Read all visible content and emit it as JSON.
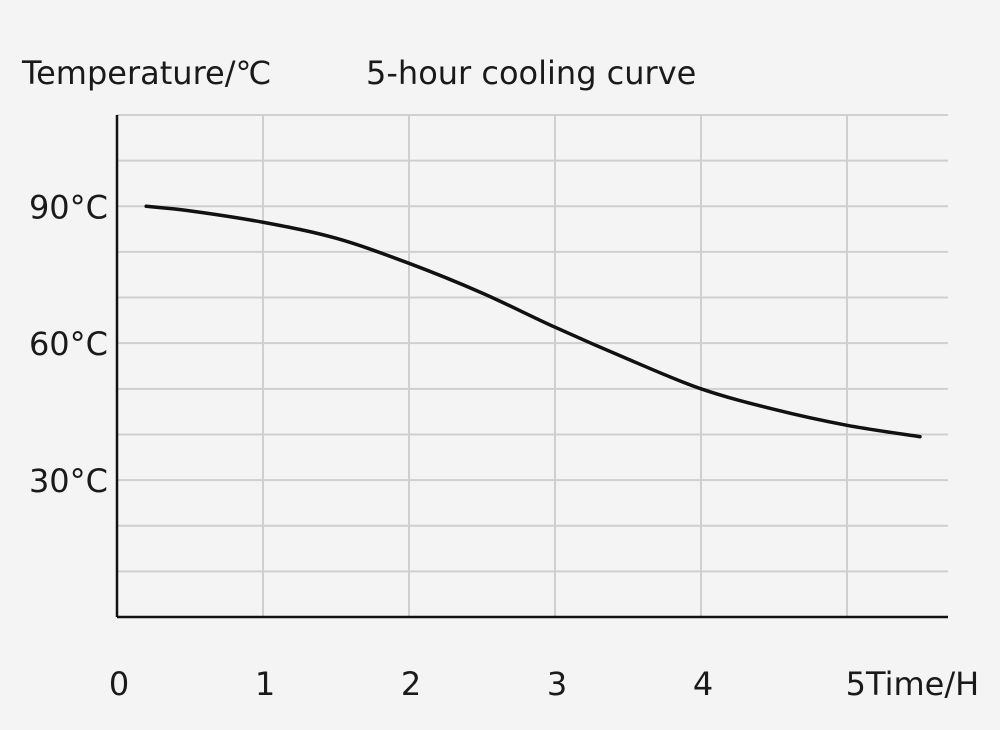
{
  "chart_data": {
    "type": "line",
    "title": "5-hour cooling curve",
    "ylabel": "Temperature/℃",
    "xlabel": "Time/H",
    "x_ticks": [
      {
        "value": 0,
        "label": "0"
      },
      {
        "value": 1,
        "label": "1"
      },
      {
        "value": 2,
        "label": "2"
      },
      {
        "value": 3,
        "label": "3"
      },
      {
        "value": 4,
        "label": "4"
      },
      {
        "value": 5,
        "label": "5"
      }
    ],
    "y_ticks": [
      {
        "value": 30,
        "label": "30°C"
      },
      {
        "value": 60,
        "label": "60°C"
      },
      {
        "value": 90,
        "label": "90°C"
      }
    ],
    "xlim": [
      0,
      5.7
    ],
    "ylim": [
      0,
      110
    ],
    "grid": true,
    "colors": {
      "line": "#111111",
      "grid": "#cfcfcf",
      "axis": "#111111",
      "background": "#f4f4f4"
    },
    "series": [
      {
        "x": [
          0.2,
          0.5,
          1.0,
          1.5,
          2.0,
          2.5,
          3.0,
          3.5,
          4.0,
          4.5,
          5.0,
          5.5
        ],
        "values": [
          90,
          89,
          86.5,
          83,
          77.5,
          71,
          63.5,
          56.5,
          50,
          45.5,
          42,
          39.5
        ]
      }
    ]
  }
}
